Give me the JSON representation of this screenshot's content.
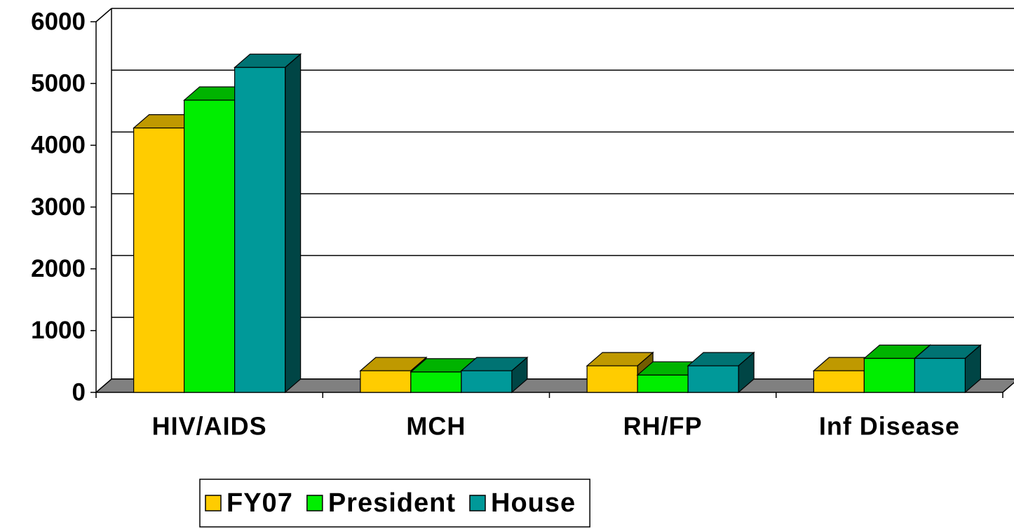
{
  "chart_data": {
    "type": "bar",
    "categories": [
      "HIV/AIDS",
      "MCH",
      "RH/FP",
      "Inf Disease"
    ],
    "series": [
      {
        "name": "FY07",
        "color": "#ffcc00",
        "values": [
          4280,
          350,
          430,
          350
        ]
      },
      {
        "name": "President",
        "color": "#00ee00",
        "values": [
          4730,
          330,
          280,
          550
        ]
      },
      {
        "name": "House",
        "color": "#009999",
        "values": [
          5260,
          350,
          430,
          550
        ]
      }
    ],
    "ylim": [
      0,
      6000
    ],
    "yticks": [
      0,
      1000,
      2000,
      3000,
      4000,
      5000,
      6000
    ],
    "grid": true,
    "legend": "bottom"
  }
}
